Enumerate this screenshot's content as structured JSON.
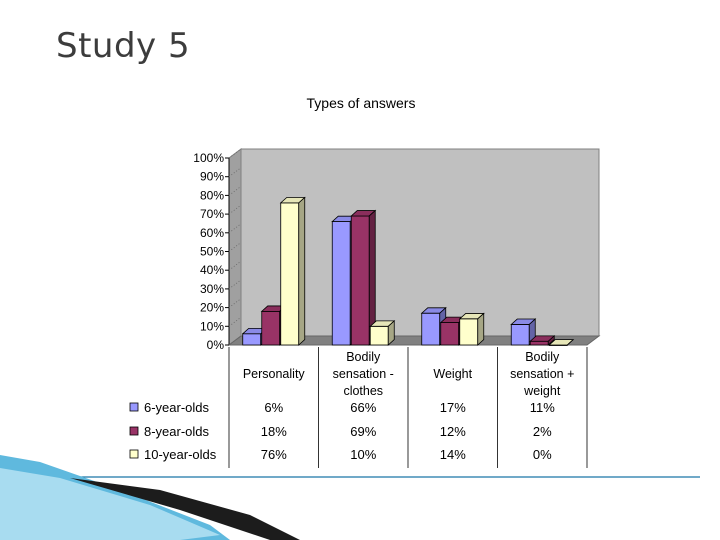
{
  "slide": {
    "title": "Study 5"
  },
  "chart_data": {
    "type": "bar",
    "title": "Types of answers",
    "categories": [
      [
        "Personality"
      ],
      [
        "Bodily",
        "sensation -",
        "clothes"
      ],
      [
        "Weight"
      ],
      [
        "Bodily",
        "sensation +",
        "weight"
      ]
    ],
    "yticks": [
      "0%",
      "10%",
      "20%",
      "30%",
      "40%",
      "50%",
      "60%",
      "70%",
      "80%",
      "90%",
      "100%"
    ],
    "ylim": [
      0,
      100
    ],
    "series": [
      {
        "name": "6-year-olds",
        "values": [
          6,
          66,
          17,
          11
        ],
        "labels": [
          "6%",
          "66%",
          "17%",
          "11%"
        ],
        "color": "#9999ff"
      },
      {
        "name": "8-year-olds",
        "values": [
          18,
          69,
          12,
          2
        ],
        "labels": [
          "18%",
          "69%",
          "12%",
          "2%"
        ],
        "color": "#993366"
      },
      {
        "name": "10-year-olds",
        "values": [
          76,
          10,
          14,
          0
        ],
        "labels": [
          "76%",
          "10%",
          "14%",
          "0%"
        ],
        "color": "#ffffcc"
      }
    ],
    "plot_background": "#c0c0c0",
    "floor_color": "#808080",
    "legend": "data-table-below"
  }
}
